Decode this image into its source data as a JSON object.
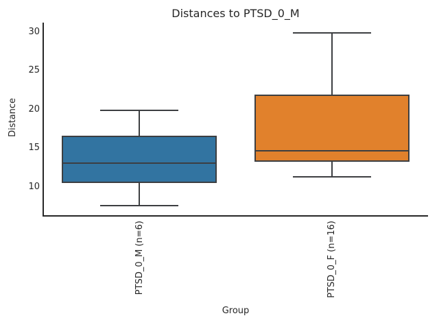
{
  "chart_data": {
    "type": "boxplot",
    "title": "Distances to PTSD_0_M",
    "xlabel": "Group",
    "ylabel": "Distance",
    "ylim": [
      6.3,
      31.2
    ],
    "yticks": [
      30,
      25,
      20,
      15,
      10
    ],
    "grid": false,
    "legend_position": "none",
    "categories": [
      "PTSD_0_M (n=6)",
      "PTSD_0_F (n=16)"
    ],
    "series": [
      {
        "name": "PTSD_0_M (n=6)",
        "n": 6,
        "whisker_low": 7.6,
        "q1": 10.5,
        "median": 13.1,
        "q3": 16.6,
        "whisker_high": 19.9,
        "color": "#3274A1"
      },
      {
        "name": "PTSD_0_F (n=16)",
        "n": 16,
        "whisker_low": 11.3,
        "q1": 13.3,
        "median": 14.7,
        "q3": 21.9,
        "whisker_high": 29.9,
        "color": "#E1812C"
      }
    ],
    "colors": {
      "box_line": "#3C3E41",
      "spine": "#262626",
      "text": "#262626",
      "background": "#FFFFFF"
    }
  }
}
